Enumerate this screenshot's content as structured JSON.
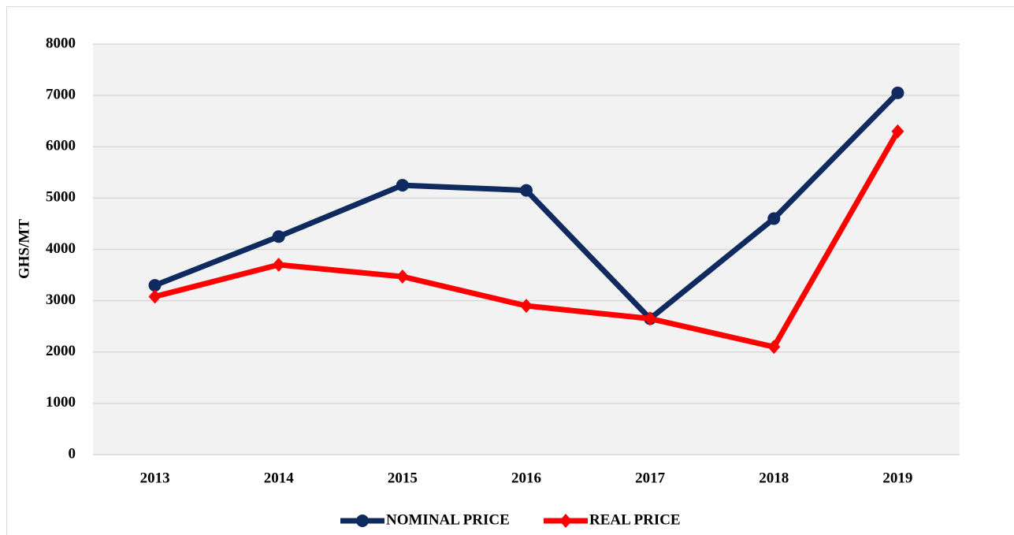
{
  "chart_data": {
    "type": "line",
    "categories": [
      "2013",
      "2014",
      "2015",
      "2016",
      "2017",
      "2018",
      "2019"
    ],
    "series": [
      {
        "name": "NOMINAL PRICE",
        "color": "#0f2a5f",
        "marker": "circle",
        "values": [
          3300,
          4250,
          5250,
          5150,
          2650,
          4600,
          7050
        ]
      },
      {
        "name": "REAL PRICE",
        "color": "#ff0000",
        "marker": "diamond",
        "values": [
          3080,
          3700,
          3470,
          2900,
          2650,
          2100,
          6300
        ]
      }
    ],
    "ylabel": "GHS/MT",
    "ylim": [
      0,
      8000
    ],
    "yticks": [
      0,
      1000,
      2000,
      3000,
      4000,
      5000,
      6000,
      7000,
      8000
    ],
    "grid": true,
    "legend": "bottom"
  }
}
